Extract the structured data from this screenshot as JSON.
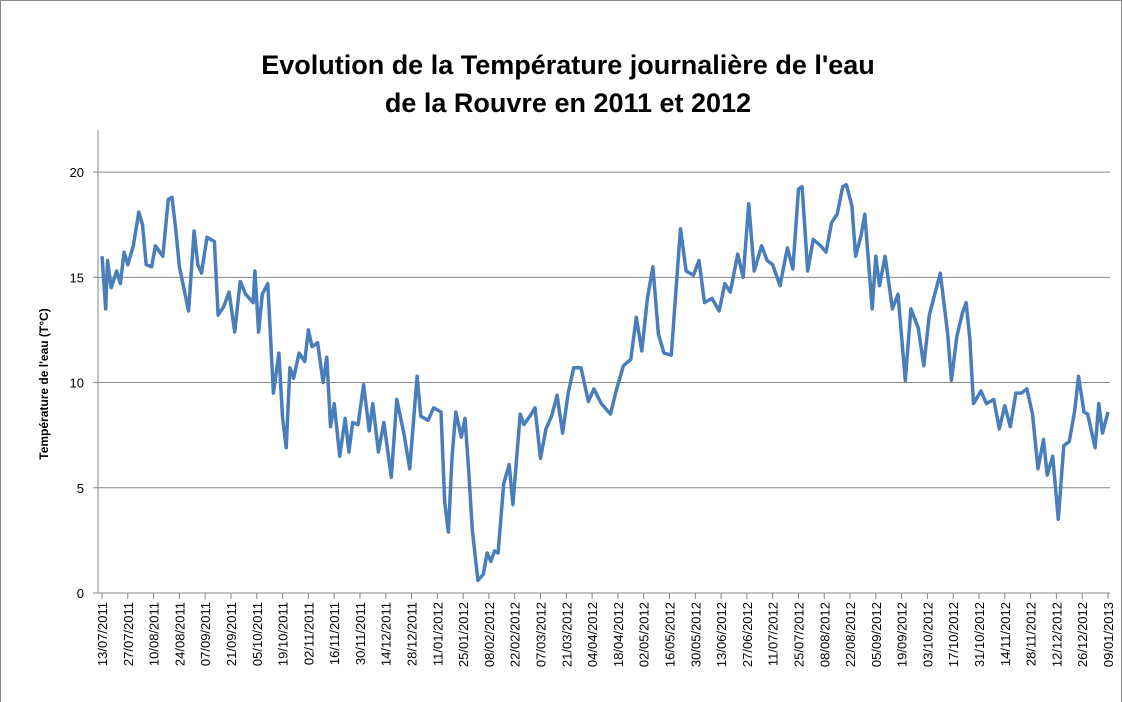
{
  "chart_data": {
    "type": "line",
    "title": [
      "Evolution de la Température journalière de l'eau",
      "de la Rouvre en 2011 et 2012"
    ],
    "y_label": "Température de l'eau  (T°C)",
    "ylim": [
      0,
      22
    ],
    "yticks": [
      0,
      5,
      10,
      15,
      20
    ],
    "grid": true,
    "xlim": [
      "13/07/2011",
      "09/01/2013"
    ],
    "xticks": [
      "13/07/2011",
      "27/07/2011",
      "10/08/2011",
      "24/08/2011",
      "07/09/2011",
      "21/09/2011",
      "05/10/2011",
      "19/10/2011",
      "02/11/2011",
      "16/11/2011",
      "30/11/2011",
      "14/12/2011",
      "28/12/2011",
      "11/01/2012",
      "25/01/2012",
      "08/02/2012",
      "22/02/2012",
      "07/03/2012",
      "21/03/2012",
      "04/04/2012",
      "18/04/2012",
      "02/05/2012",
      "16/05/2012",
      "30/05/2012",
      "13/06/2012",
      "27/06/2012",
      "11/07/2012",
      "25/07/2012",
      "08/08/2012",
      "22/08/2012",
      "05/09/2012",
      "19/09/2012",
      "03/10/2012",
      "17/10/2012",
      "31/10/2012",
      "14/11/2012",
      "28/11/2012",
      "12/12/2012",
      "26/12/2012",
      "09/01/2013"
    ],
    "x": [
      "13/07/2011",
      "15/07/2011",
      "16/07/2011",
      "18/07/2011",
      "21/07/2011",
      "23/07/2011",
      "25/07/2011",
      "27/07/2011",
      "30/07/2011",
      "02/08/2011",
      "04/08/2011",
      "06/08/2011",
      "09/08/2011",
      "11/08/2011",
      "15/08/2011",
      "18/08/2011",
      "20/08/2011",
      "22/08/2011",
      "24/08/2011",
      "29/08/2011",
      "01/09/2011",
      "03/09/2011",
      "05/09/2011",
      "08/09/2011",
      "12/09/2011",
      "14/09/2011",
      "17/09/2011",
      "20/09/2011",
      "23/09/2011",
      "26/09/2011",
      "29/09/2011",
      "03/10/2011",
      "04/10/2011",
      "06/10/2011",
      "08/10/2011",
      "11/10/2011",
      "14/10/2011",
      "17/10/2011",
      "19/10/2011",
      "21/10/2011",
      "23/10/2011",
      "25/10/2011",
      "28/10/2011",
      "31/10/2011",
      "02/11/2011",
      "04/11/2011",
      "07/11/2011",
      "10/11/2011",
      "12/11/2011",
      "14/11/2011",
      "16/11/2011",
      "19/11/2011",
      "22/11/2011",
      "24/11/2011",
      "26/11/2011",
      "29/11/2011",
      "02/12/2011",
      "05/12/2011",
      "07/12/2011",
      "10/12/2011",
      "13/12/2011",
      "17/12/2011",
      "20/12/2011",
      "24/12/2011",
      "27/12/2011",
      "31/12/2011",
      "02/01/2012",
      "06/01/2012",
      "09/01/2012",
      "13/01/2012",
      "15/01/2012",
      "17/01/2012",
      "19/01/2012",
      "21/01/2012",
      "24/01/2012",
      "26/01/2012",
      "28/01/2012",
      "30/01/2012",
      "02/02/2012",
      "05/02/2012",
      "07/02/2012",
      "09/02/2012",
      "11/02/2012",
      "13/02/2012",
      "16/02/2012",
      "19/02/2012",
      "21/02/2012",
      "25/02/2012",
      "27/02/2012",
      "02/03/2012",
      "04/03/2012",
      "07/03/2012",
      "10/03/2012",
      "13/03/2012",
      "16/03/2012",
      "19/03/2012",
      "22/03/2012",
      "25/03/2012",
      "29/03/2012",
      "02/04/2012",
      "05/04/2012",
      "09/04/2012",
      "14/04/2012",
      "17/04/2012",
      "21/04/2012",
      "25/04/2012",
      "28/04/2012",
      "01/05/2012",
      "04/05/2012",
      "07/05/2012",
      "10/05/2012",
      "13/05/2012",
      "17/05/2012",
      "20/05/2012",
      "22/05/2012",
      "25/05/2012",
      "29/05/2012",
      "01/06/2012",
      "04/06/2012",
      "08/06/2012",
      "12/06/2012",
      "15/06/2012",
      "18/06/2012",
      "22/06/2012",
      "25/06/2012",
      "28/06/2012",
      "01/07/2012",
      "05/07/2012",
      "08/07/2012",
      "11/07/2012",
      "15/07/2012",
      "19/07/2012",
      "22/07/2012",
      "25/07/2012",
      "27/07/2012",
      "30/07/2012",
      "02/08/2012",
      "06/08/2012",
      "09/08/2012",
      "12/08/2012",
      "15/08/2012",
      "18/08/2012",
      "20/08/2012",
      "23/08/2012",
      "25/08/2012",
      "28/08/2012",
      "30/08/2012",
      "03/09/2012",
      "05/09/2012",
      "07/09/2012",
      "10/09/2012",
      "14/09/2012",
      "17/09/2012",
      "21/09/2012",
      "24/09/2012",
      "28/09/2012",
      "01/10/2012",
      "04/10/2012",
      "07/10/2012",
      "10/10/2012",
      "14/10/2012",
      "16/10/2012",
      "19/10/2012",
      "22/10/2012",
      "24/10/2012",
      "26/10/2012",
      "28/10/2012",
      "01/11/2012",
      "04/11/2012",
      "08/11/2012",
      "11/11/2012",
      "14/11/2012",
      "17/11/2012",
      "20/11/2012",
      "23/11/2012",
      "26/11/2012",
      "29/11/2012",
      "02/12/2012",
      "05/12/2012",
      "07/12/2012",
      "10/12/2012",
      "13/12/2012",
      "16/12/2012",
      "19/12/2012",
      "22/12/2012",
      "24/12/2012",
      "27/12/2012",
      "29/12/2012",
      "02/01/2013",
      "04/01/2013",
      "06/01/2013",
      "09/01/2013"
    ],
    "series": [
      {
        "color": "#4a7ebb",
        "values": [
          16.0,
          13.5,
          15.8,
          14.5,
          15.3,
          14.7,
          16.2,
          15.6,
          16.5,
          18.1,
          17.5,
          15.6,
          15.5,
          16.5,
          16.0,
          18.7,
          18.8,
          17.3,
          15.5,
          13.4,
          17.2,
          15.6,
          15.2,
          16.9,
          16.7,
          13.2,
          13.6,
          14.3,
          12.4,
          14.8,
          14.2,
          13.8,
          15.3,
          12.4,
          14.2,
          14.7,
          9.5,
          11.4,
          8.3,
          6.9,
          10.7,
          10.2,
          11.4,
          11.0,
          12.5,
          11.7,
          11.9,
          10.0,
          11.2,
          7.9,
          9.0,
          6.5,
          8.3,
          6.7,
          8.1,
          8.0,
          9.9,
          7.7,
          9.0,
          6.7,
          8.1,
          5.5,
          9.2,
          7.5,
          5.9,
          10.3,
          8.4,
          8.2,
          8.8,
          8.6,
          4.3,
          2.9,
          6.5,
          8.6,
          7.4,
          8.3,
          5.8,
          3.0,
          0.6,
          0.9,
          1.9,
          1.5,
          2.0,
          1.9,
          5.2,
          6.1,
          4.2,
          8.5,
          8.0,
          8.5,
          8.8,
          6.4,
          7.8,
          8.4,
          9.4,
          7.6,
          9.5,
          10.7,
          10.7,
          9.1,
          9.7,
          9.0,
          8.5,
          9.6,
          10.8,
          11.1,
          13.1,
          11.5,
          14.0,
          15.5,
          12.3,
          11.4,
          11.3,
          15.0,
          17.3,
          15.3,
          15.1,
          15.8,
          13.8,
          14.0,
          13.4,
          14.7,
          14.3,
          16.1,
          15.0,
          18.5,
          15.3,
          16.5,
          15.8,
          15.6,
          14.6,
          16.4,
          15.4,
          19.2,
          19.3,
          15.3,
          16.8,
          16.5,
          16.2,
          17.6,
          18.0,
          19.3,
          19.4,
          18.4,
          16.0,
          17.0,
          18.0,
          13.5,
          16.0,
          14.6,
          16.0,
          13.5,
          14.2,
          10.1,
          13.5,
          12.6,
          10.8,
          13.2,
          14.2,
          15.2,
          12.3,
          10.1,
          12.2,
          13.3,
          13.8,
          12.1,
          9.0,
          9.6,
          9.0,
          9.2,
          7.8,
          8.9,
          7.9,
          9.5,
          9.5,
          9.7,
          8.5,
          5.9,
          7.3,
          5.6,
          6.5,
          3.5,
          7.0,
          7.2,
          8.7,
          10.3,
          8.6,
          8.5,
          6.9,
          9.0,
          7.6,
          8.6
        ]
      }
    ]
  }
}
